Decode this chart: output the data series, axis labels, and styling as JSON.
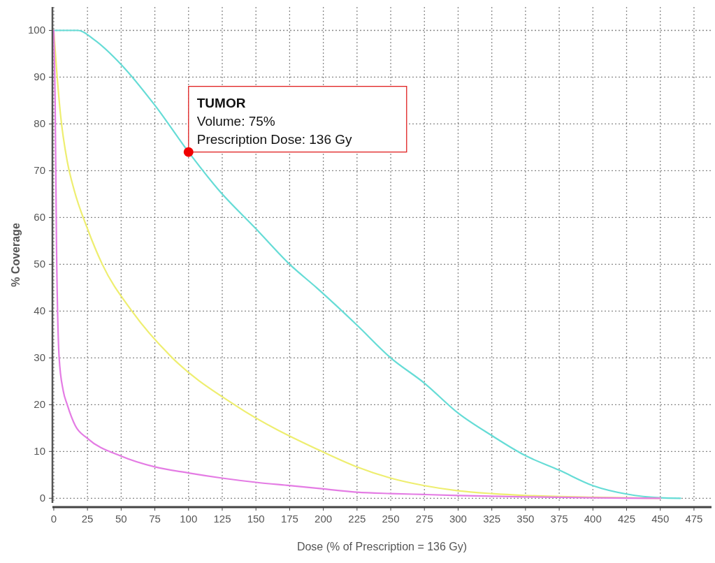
{
  "chart_data": {
    "type": "line",
    "xlabel": "Dose (% of Prescription = 136 Gy)",
    "ylabel": "% Coverage",
    "xlim": [
      -1,
      488
    ],
    "ylim": [
      -1,
      105
    ],
    "xticks": [
      0,
      25,
      50,
      75,
      100,
      125,
      150,
      175,
      200,
      225,
      250,
      275,
      300,
      325,
      350,
      375,
      400,
      425,
      450,
      475
    ],
    "yticks": [
      0,
      10,
      20,
      30,
      40,
      50,
      60,
      70,
      80,
      90,
      100
    ],
    "grid": true,
    "line_style": "solid",
    "series": [
      {
        "color": "#66dcd6",
        "x": [
          0,
          18,
          30,
          50,
          75,
          100,
          122,
          150,
          175,
          195,
          225,
          250,
          275,
          300,
          325,
          350,
          375,
          400,
          425,
          450,
          465
        ],
        "values": [
          100,
          100,
          98,
          92.7,
          84,
          74,
          66,
          57.6,
          50,
          45,
          37,
          30,
          24.6,
          18.2,
          13.4,
          9.1,
          6,
          2.7,
          0.9,
          0.1,
          0
        ]
      },
      {
        "color": "#eeee70",
        "x": [
          0,
          2,
          5,
          10,
          15,
          25,
          36,
          58,
          88,
          134,
          199,
          225,
          250,
          275,
          300,
          325,
          350,
          400,
          450
        ],
        "values": [
          100,
          92,
          82,
          72,
          66,
          57.6,
          50,
          40,
          30,
          20,
          10,
          6.7,
          4.3,
          2.7,
          1.6,
          1,
          0.6,
          0.2,
          0
        ]
      },
      {
        "color": "#e47ce4",
        "x": [
          0,
          1,
          2,
          4,
          7,
          10,
          16,
          25,
          50,
          75,
          100,
          125,
          150,
          175,
          200,
          225,
          250,
          275,
          300,
          350,
          400,
          450
        ],
        "values": [
          100,
          85,
          55,
          30,
          23,
          20,
          15.5,
          12.8,
          9,
          6.7,
          5.4,
          4.3,
          3.4,
          2.7,
          2,
          1.3,
          1,
          0.8,
          0.6,
          0.3,
          0.1,
          0
        ]
      }
    ],
    "annotations": [
      {
        "text": "TUMOR\nVolume: 75%\nPrescription Dose: 136 Gy",
        "x": 100,
        "y": 74
      }
    ]
  }
}
